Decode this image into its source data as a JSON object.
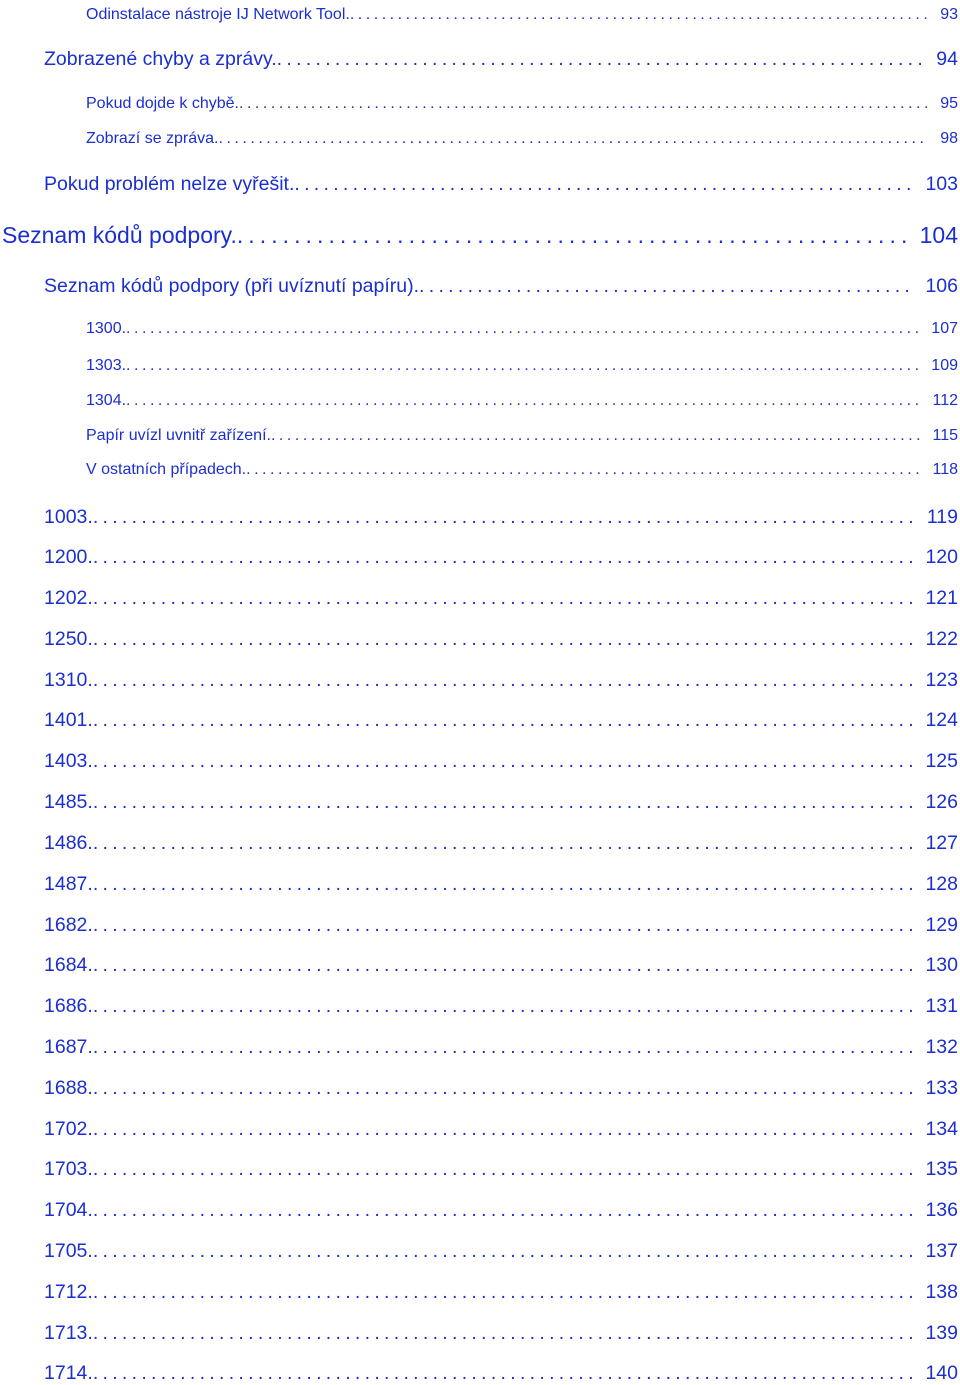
{
  "entries": [
    {
      "title": "Odinstalace nástroje IJ Network Tool.",
      "page": "93",
      "level": 2
    },
    {
      "title": "Zobrazené chyby a zprávy.",
      "page": "94",
      "level": 1
    },
    {
      "title": "Pokud dojde k chybě.",
      "page": "95",
      "level": 2
    },
    {
      "title": "Zobrazí se zpráva.",
      "page": "98",
      "level": 2
    },
    {
      "title": "Pokud problém nelze vyřešit.",
      "page": "103",
      "level": 1
    },
    {
      "title": "Seznam kódů podpory.",
      "page": "104",
      "level": 0
    },
    {
      "title": "Seznam kódů podpory (při uvíznutí papíru).",
      "page": "106",
      "level": 1
    },
    {
      "title": "1300.",
      "page": "107",
      "level": 2
    },
    {
      "title": "1303.",
      "page": "109",
      "level": 2
    },
    {
      "title": "1304.",
      "page": "112",
      "level": 2
    },
    {
      "title": "Papír uvízl uvnitř zařízení.",
      "page": "115",
      "level": 2
    },
    {
      "title": "V ostatních případech.",
      "page": "118",
      "level": 2
    },
    {
      "title": "1003.",
      "page": "119",
      "level": 1
    },
    {
      "title": "1200.",
      "page": "120",
      "level": 1
    },
    {
      "title": "1202.",
      "page": "121",
      "level": 1
    },
    {
      "title": "1250.",
      "page": "122",
      "level": 1
    },
    {
      "title": "1310.",
      "page": "123",
      "level": 1
    },
    {
      "title": "1401.",
      "page": "124",
      "level": 1
    },
    {
      "title": "1403.",
      "page": "125",
      "level": 1
    },
    {
      "title": "1485.",
      "page": "126",
      "level": 1
    },
    {
      "title": "1486.",
      "page": "127",
      "level": 1
    },
    {
      "title": "1487.",
      "page": "128",
      "level": 1
    },
    {
      "title": "1682.",
      "page": "129",
      "level": 1
    },
    {
      "title": "1684.",
      "page": "130",
      "level": 1
    },
    {
      "title": "1686.",
      "page": "131",
      "level": 1
    },
    {
      "title": "1687.",
      "page": "132",
      "level": 1
    },
    {
      "title": "1688.",
      "page": "133",
      "level": 1
    },
    {
      "title": "1702.",
      "page": "134",
      "level": 1
    },
    {
      "title": "1703.",
      "page": "135",
      "level": 1
    },
    {
      "title": "1704.",
      "page": "136",
      "level": 1
    },
    {
      "title": "1705.",
      "page": "137",
      "level": 1
    },
    {
      "title": "1712.",
      "page": "138",
      "level": 1
    },
    {
      "title": "1713.",
      "page": "139",
      "level": 1
    },
    {
      "title": "1714.",
      "page": "140",
      "level": 1
    }
  ],
  "colors": {
    "link": "#1b2fd0",
    "background": "#ffffff"
  }
}
